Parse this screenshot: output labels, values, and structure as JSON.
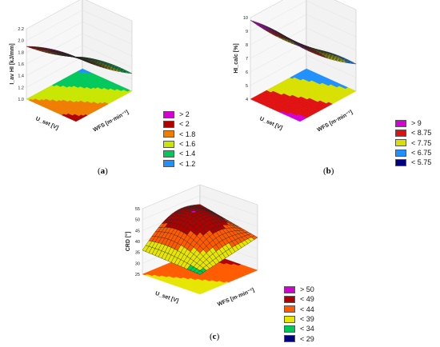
{
  "chart_data": [
    {
      "id": "a",
      "type": "surface3d",
      "caption": "a",
      "zlabel": "I_av HI [kJ/mm]",
      "xlabel": "WFS [m·min⁻¹]",
      "ylabel": "U_set [V]",
      "zticks": [
        "2.2",
        "2.0",
        "1.8",
        "1.6",
        "1.4",
        "1.2",
        "1.0"
      ],
      "zlim": [
        1.0,
        2.2
      ],
      "legend": [
        "> 2",
        "< 2",
        "< 1.8",
        "< 1.6",
        "< 1.4",
        "< 1.2"
      ],
      "legend_colors": [
        "#d400d4",
        "#b00000",
        "#f07c00",
        "#c8e600",
        "#00c85a",
        "#1e90ff"
      ],
      "z_corners": [
        2.1,
        1.3,
        1.2,
        1.9
      ],
      "contour_corners": [
        1.9,
        1.4,
        1.15,
        1.6
      ]
    },
    {
      "id": "b",
      "type": "surface3d",
      "caption": "b",
      "zlabel": "HI_calc [%]",
      "xlabel": "WFS [m·min⁻¹]",
      "ylabel": "U_set [V]",
      "zticks": [
        "10",
        "9",
        "8",
        "7",
        "6",
        "5",
        "4"
      ],
      "zlim": [
        4,
        10
      ],
      "legend": [
        "> 9",
        "< 8.75",
        "< 7.75",
        "< 6.75",
        "< 5.75"
      ],
      "legend_colors": [
        "#d400d4",
        "#e01010",
        "#d8e000",
        "#1e90ff",
        "#000080"
      ],
      "z_corners": [
        9.5,
        6.0,
        5.5,
        9.8
      ],
      "contour_corners": [
        9.2,
        6.5,
        5.6,
        8.4
      ]
    },
    {
      "id": "c",
      "type": "surface3d",
      "caption": "c",
      "zlabel": "CRD [°]",
      "xlabel": "WFS [m·min⁻¹]",
      "ylabel": "U_set [V]",
      "zticks": [
        "55",
        "50",
        "45",
        "40",
        "35",
        "30",
        "25"
      ],
      "zlim": [
        25,
        55
      ],
      "legend": [
        "> 50",
        "< 49",
        "< 44",
        "< 39",
        "< 34",
        "< 29"
      ],
      "legend_colors": [
        "#d400d4",
        "#b00000",
        "#ff5a00",
        "#e6e600",
        "#00c85a",
        "#000080"
      ],
      "z_corners": [
        34,
        40,
        46,
        36
      ],
      "contour_corners": [
        36,
        44,
        48,
        40
      ]
    }
  ]
}
